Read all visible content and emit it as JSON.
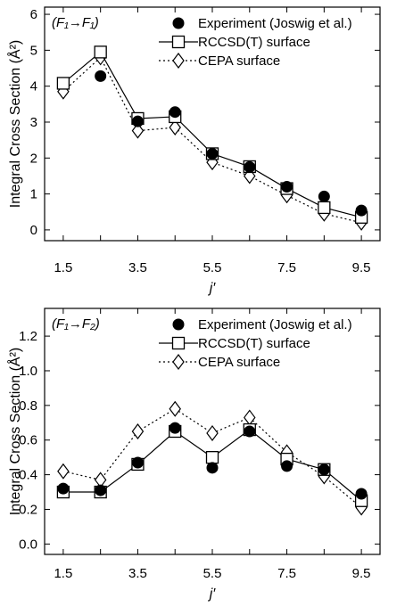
{
  "chart_data": [
    {
      "type": "line",
      "panel_label": "(F₁→F₁)",
      "x": [
        1.5,
        2.5,
        3.5,
        4.5,
        5.5,
        6.5,
        7.5,
        8.5,
        9.5
      ],
      "x_ticks": [
        "1.5",
        "3.5",
        "5.5",
        "7.5",
        "9.5"
      ],
      "y_ticks": [
        "0",
        "1",
        "2",
        "3",
        "4",
        "5",
        "6"
      ],
      "xlabel": "j′",
      "ylabel": "Integral Cross Section (Å²)",
      "xlim": [
        1.0,
        10.0
      ],
      "ylim": [
        -0.3,
        6.2
      ],
      "legend_position": "top-right",
      "series": [
        {
          "name": "Experiment (Joswig et al.)",
          "marker": "filled-circle",
          "line": "none",
          "values": [
            null,
            4.28,
            3.02,
            3.28,
            2.12,
            1.75,
            1.2,
            0.93,
            0.54
          ]
        },
        {
          "name": "RCCSD(T) surface",
          "marker": "open-square",
          "line": "solid",
          "values": [
            4.08,
            4.95,
            3.1,
            3.15,
            2.12,
            1.76,
            1.15,
            0.62,
            0.35
          ]
        },
        {
          "name": "CEPA surface",
          "marker": "open-diamond",
          "line": "dotted",
          "values": [
            3.85,
            4.8,
            2.76,
            2.85,
            1.88,
            1.5,
            0.96,
            0.45,
            0.2
          ]
        }
      ]
    },
    {
      "type": "line",
      "panel_label": "(F₁→F₂)",
      "x": [
        1.5,
        2.5,
        3.5,
        4.5,
        5.5,
        6.5,
        7.5,
        8.5,
        9.5
      ],
      "x_ticks": [
        "1.5",
        "3.5",
        "5.5",
        "7.5",
        "9.5"
      ],
      "y_ticks": [
        "0.0",
        "0.2",
        "0.4",
        "0.6",
        "0.8",
        "1.0",
        "1.2"
      ],
      "xlabel": "j′",
      "ylabel": "Integral Cross Section (Å²)",
      "xlim": [
        1.0,
        10.0
      ],
      "ylim": [
        -0.06,
        1.36
      ],
      "legend_position": "top-right",
      "series": [
        {
          "name": "Experiment (Joswig et al.)",
          "marker": "filled-circle",
          "line": "none",
          "values": [
            0.32,
            0.31,
            0.47,
            0.67,
            0.44,
            0.65,
            0.45,
            0.43,
            0.29
          ]
        },
        {
          "name": "RCCSD(T) surface",
          "marker": "open-square",
          "line": "solid",
          "values": [
            0.3,
            0.3,
            0.46,
            0.65,
            0.5,
            0.66,
            0.49,
            0.43,
            0.25
          ]
        },
        {
          "name": "CEPA surface",
          "marker": "open-diamond",
          "line": "dotted",
          "values": [
            0.42,
            0.37,
            0.65,
            0.78,
            0.64,
            0.73,
            0.53,
            0.39,
            0.21
          ]
        }
      ]
    }
  ]
}
